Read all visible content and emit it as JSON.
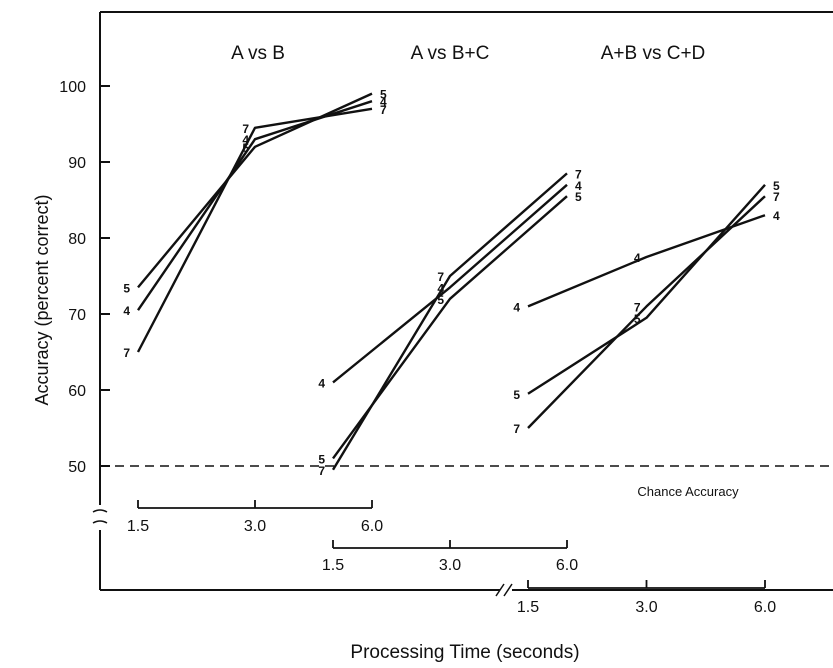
{
  "chart_data": {
    "type": "line",
    "ylabel": "Accuracy (percent correct)",
    "xlabel": "Processing Time (seconds)",
    "ylim": [
      45,
      105
    ],
    "yticks": [
      50,
      60,
      70,
      80,
      90,
      100
    ],
    "grid": false,
    "x_tick_labels": [
      "1.5",
      "3.0",
      "6.0"
    ],
    "reference_line": {
      "y": 50,
      "label": "Chance Accuracy",
      "style": "dashed"
    },
    "panels": [
      {
        "title": "A vs B",
        "x": [
          1.5,
          3.0,
          6.0
        ],
        "series": [
          {
            "name": "4",
            "values": [
              70.5,
              93,
              98
            ]
          },
          {
            "name": "5",
            "values": [
              73.5,
              92,
              99
            ]
          },
          {
            "name": "7",
            "values": [
              65,
              94.5,
              97
            ]
          }
        ]
      },
      {
        "title": "A vs B+C",
        "x": [
          1.5,
          3.0,
          6.0
        ],
        "series": [
          {
            "name": "4",
            "values": [
              61,
              73.5,
              87
            ]
          },
          {
            "name": "5",
            "values": [
              51,
              72,
              85.5
            ]
          },
          {
            "name": "7",
            "values": [
              49.5,
              75,
              88.5
            ]
          }
        ]
      },
      {
        "title": "A+B vs C+D",
        "x": [
          1.5,
          3.0,
          6.0
        ],
        "series": [
          {
            "name": "4",
            "values": [
              71,
              77.5,
              83
            ]
          },
          {
            "name": "5",
            "values": [
              59.5,
              69.5,
              87
            ]
          },
          {
            "name": "7",
            "values": [
              55,
              71,
              85.5
            ]
          }
        ]
      }
    ]
  }
}
